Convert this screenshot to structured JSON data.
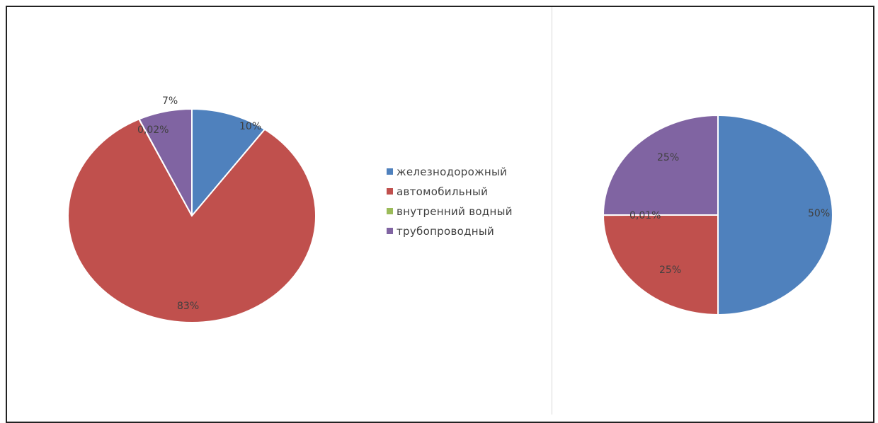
{
  "chart_data": [
    {
      "type": "pie",
      "categories": [
        "железнодорожный",
        "автомобильный",
        "внутренний водный",
        "трубопроводный"
      ],
      "values": [
        10,
        83,
        0.02,
        7
      ],
      "labels": [
        "10%",
        "83%",
        "0,02%",
        "7%"
      ],
      "colors": [
        "#4f81bd",
        "#c0504d",
        "#9bbb59",
        "#8064a2"
      ]
    },
    {
      "type": "pie",
      "categories": [
        "железнодорожный",
        "автомобильный",
        "внутренний водный",
        "трубопроводный"
      ],
      "values": [
        50,
        25,
        0.01,
        25
      ],
      "labels": [
        "50%",
        "25%",
        "0,01%",
        "25%"
      ],
      "colors": [
        "#4f81bd",
        "#c0504d",
        "#9bbb59",
        "#8064a2"
      ]
    }
  ],
  "legend": {
    "items": [
      {
        "label": "железнодорожный",
        "color": "#4f81bd"
      },
      {
        "label": "автомобильный",
        "color": "#c0504d"
      },
      {
        "label": "внутренний водный",
        "color": "#9bbb59"
      },
      {
        "label": "трубопроводный",
        "color": "#8064a2"
      }
    ]
  }
}
